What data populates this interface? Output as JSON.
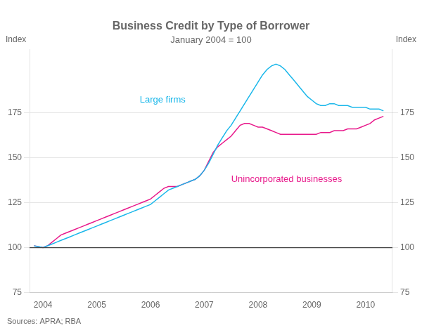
{
  "chart_data": {
    "type": "line",
    "title": "Business Credit by Type of Borrower",
    "subtitle": "January 2004 = 100",
    "ylabel": "Index",
    "y2label": "Index",
    "source": "Sources: APRA; RBA",
    "x": [
      2003.833,
      2003.917,
      2004.0,
      2004.083,
      2004.167,
      2004.25,
      2004.333,
      2004.417,
      2004.5,
      2004.583,
      2004.667,
      2004.75,
      2004.833,
      2004.917,
      2005.0,
      2005.083,
      2005.167,
      2005.25,
      2005.333,
      2005.417,
      2005.5,
      2005.583,
      2005.667,
      2005.75,
      2005.833,
      2005.917,
      2006.0,
      2006.083,
      2006.167,
      2006.25,
      2006.333,
      2006.417,
      2006.5,
      2006.583,
      2006.667,
      2006.75,
      2006.833,
      2006.917,
      2007.0,
      2007.083,
      2007.167,
      2007.25,
      2007.333,
      2007.417,
      2007.5,
      2007.583,
      2007.667,
      2007.75,
      2007.833,
      2007.917,
      2008.0,
      2008.083,
      2008.167,
      2008.25,
      2008.333,
      2008.417,
      2008.5,
      2008.583,
      2008.667,
      2008.75,
      2008.833,
      2008.917,
      2009.0,
      2009.083,
      2009.167,
      2009.25,
      2009.333,
      2009.417,
      2009.5,
      2009.583,
      2009.667,
      2009.75,
      2009.833,
      2009.917,
      2010.0,
      2010.083,
      2010.167,
      2010.25,
      2010.333
    ],
    "series": [
      {
        "name": "Large firms",
        "color": "#1ab7ea",
        "values": [
          101,
          100.5,
          100,
          101,
          102,
          103,
          104,
          105,
          106,
          107,
          108,
          109,
          110,
          111,
          112,
          113,
          114,
          115,
          116,
          117,
          118,
          119,
          120,
          121,
          122,
          123,
          124,
          126,
          128,
          130,
          132,
          133,
          134,
          135,
          136,
          137,
          138,
          140,
          143,
          147,
          152,
          157,
          161,
          165,
          168,
          172,
          176,
          180,
          184,
          188,
          192,
          196,
          199,
          201,
          202,
          201,
          199,
          196,
          193,
          190,
          187,
          184,
          182,
          180,
          179,
          179,
          180,
          180,
          179,
          179,
          179,
          178,
          178,
          178,
          178,
          177,
          177,
          177,
          176
        ]
      },
      {
        "name": "Unincorporated businesses",
        "color": "#e8198b",
        "values": [
          101,
          100.5,
          100,
          101,
          103,
          105,
          107,
          108,
          109,
          110,
          111,
          112,
          113,
          114,
          115,
          116,
          117,
          118,
          119,
          120,
          121,
          122,
          123,
          124,
          125,
          126,
          127,
          129,
          131,
          133,
          134,
          134,
          134,
          135,
          136,
          137,
          138,
          140,
          143,
          148,
          153,
          156,
          158,
          160,
          162,
          165,
          168,
          169,
          169,
          168,
          167,
          167,
          166,
          165,
          164,
          163,
          163,
          163,
          163,
          163,
          163,
          163,
          163,
          163,
          164,
          164,
          164,
          165,
          165,
          165,
          166,
          166,
          166,
          167,
          168,
          169,
          171,
          172,
          173
        ]
      }
    ],
    "annotations": [
      {
        "text": "Large firms",
        "x": 2005.8,
        "y": 182,
        "color": "#1ab7ea"
      },
      {
        "text": "Unincorporated businesses",
        "x": 2007.5,
        "y": 138,
        "color": "#e8198b"
      }
    ],
    "reference_line": 100,
    "xlim": [
      2003.75,
      2010.5
    ],
    "xticks": [
      2004,
      2005,
      2006,
      2007,
      2008,
      2009,
      2010
    ],
    "ylim": [
      75,
      210
    ],
    "yticks": [
      75,
      100,
      125,
      150,
      175
    ],
    "y2lim": [
      75,
      210
    ],
    "y2ticks": [
      75,
      100,
      125,
      150,
      175
    ],
    "grid": "y"
  }
}
